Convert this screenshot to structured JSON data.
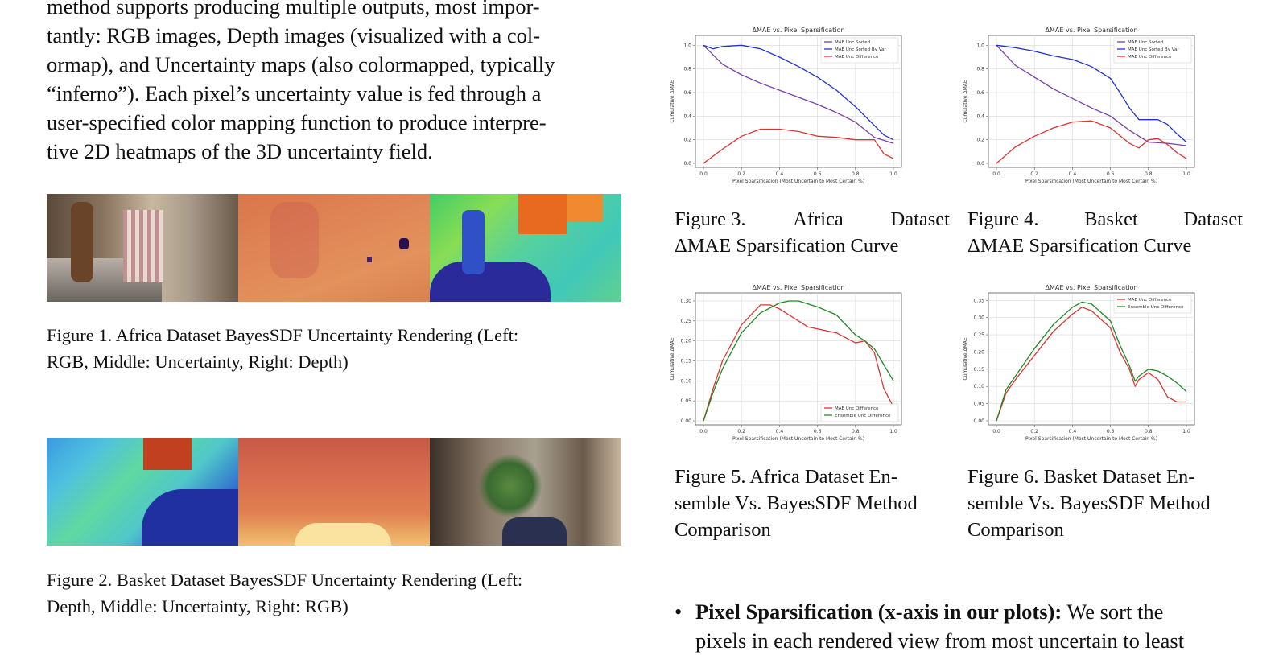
{
  "paragraph": {
    "lines": [
      "method supports producing multiple outputs, most impor-",
      "tantly: RGB images, Depth images (visualized with a col-",
      "ormap), and Uncertainty maps (also colormapped, typically",
      "“inferno”). Each pixel’s uncertainty value is fed through a",
      "user-specified color mapping function to produce interpre-",
      "tive 2D heatmaps of the 3D uncertainty field."
    ]
  },
  "figure1": {
    "caption_lines": [
      "Figure 1. Africa Dataset BayesSDF Uncertainty Rendering (Left:",
      "RGB, Middle: Uncertainty, Right: Depth)"
    ],
    "panels": [
      "RGB",
      "Uncertainty",
      "Depth"
    ]
  },
  "figure2": {
    "caption_lines": [
      "Figure 2. Basket Dataset BayesSDF Uncertainty Rendering (Left:",
      "Depth, Middle: Uncertainty, Right: RGB)"
    ],
    "panels": [
      "Depth",
      "Uncertainty",
      "RGB"
    ]
  },
  "captions": {
    "fig3": {
      "line1": [
        "Figure 3.",
        "Africa",
        "Dataset"
      ],
      "line2": "ΔMAE Sparsification Curve"
    },
    "fig4": {
      "line1": [
        "Figure 4.",
        "Basket",
        "Dataset"
      ],
      "line2": "ΔMAE Sparsification Curve"
    },
    "fig5": {
      "lines": [
        "Figure 5.  Africa Dataset En-",
        "semble Vs. BayesSDF Method",
        "Comparison"
      ]
    },
    "fig6": {
      "lines": [
        "Figure 6.  Basket Dataset En-",
        "semble Vs. BayesSDF Method",
        "Comparison"
      ]
    }
  },
  "bullet": {
    "bold": "Pixel Sparsification (x-axis in our plots):",
    "rest_line1": " We sort the",
    "line2": "pixels in each rendered view from most uncertain to least"
  },
  "chart_data": [
    {
      "id": "fig3",
      "type": "line",
      "title": "ΔMAE vs. Pixel Sparsification",
      "xlabel": "Pixel Sparsification (Most Uncertain to Most Certain %)",
      "ylabel": "Cumulative ΔMAE",
      "xlim": [
        0,
        1
      ],
      "ylim": [
        0,
        1.05
      ],
      "xticks": [
        0.0,
        0.2,
        0.4,
        0.6,
        0.8,
        1.0
      ],
      "yticks": [
        0.0,
        0.2,
        0.4,
        0.6,
        0.8,
        1.0
      ],
      "grid": true,
      "legend": "top-right",
      "series": [
        {
          "name": "MAE Unc Sorted",
          "color": "#7b3fa8",
          "x": [
            0,
            0.1,
            0.2,
            0.3,
            0.4,
            0.5,
            0.6,
            0.7,
            0.8,
            0.9,
            1.0
          ],
          "y": [
            1.0,
            0.84,
            0.75,
            0.68,
            0.62,
            0.56,
            0.5,
            0.43,
            0.35,
            0.22,
            0.17
          ]
        },
        {
          "name": "MAE Unc Sorted By Var",
          "color": "#2233cc",
          "x": [
            0,
            0.05,
            0.1,
            0.2,
            0.3,
            0.4,
            0.5,
            0.6,
            0.7,
            0.8,
            0.9,
            0.95,
            1.0
          ],
          "y": [
            1.0,
            0.97,
            0.99,
            1.0,
            0.97,
            0.9,
            0.82,
            0.73,
            0.62,
            0.48,
            0.32,
            0.24,
            0.2
          ]
        },
        {
          "name": "MAE Unc Difference",
          "color": "#dd3333",
          "x": [
            0,
            0.1,
            0.2,
            0.3,
            0.4,
            0.5,
            0.6,
            0.7,
            0.8,
            0.85,
            0.9,
            0.95,
            1.0
          ],
          "y": [
            0.0,
            0.12,
            0.23,
            0.29,
            0.29,
            0.27,
            0.23,
            0.22,
            0.2,
            0.2,
            0.2,
            0.08,
            0.04
          ]
        }
      ]
    },
    {
      "id": "fig4",
      "type": "line",
      "title": "ΔMAE vs. Pixel Sparsification",
      "xlabel": "Pixel Sparsification (Most Uncertain to Most Certain %)",
      "ylabel": "Cumulative ΔMAE",
      "xlim": [
        0,
        1
      ],
      "ylim": [
        0,
        1.05
      ],
      "xticks": [
        0.0,
        0.2,
        0.4,
        0.6,
        0.8,
        1.0
      ],
      "yticks": [
        0.0,
        0.2,
        0.4,
        0.6,
        0.8,
        1.0
      ],
      "grid": true,
      "legend": "top-right",
      "series": [
        {
          "name": "MAE Unc Sorted",
          "color": "#7b3fa8",
          "x": [
            0,
            0.1,
            0.2,
            0.3,
            0.4,
            0.5,
            0.6,
            0.7,
            0.8,
            0.9,
            1.0
          ],
          "y": [
            1.0,
            0.83,
            0.73,
            0.63,
            0.55,
            0.47,
            0.4,
            0.28,
            0.18,
            0.17,
            0.15
          ]
        },
        {
          "name": "MAE Unc Sorted By Var",
          "color": "#2233cc",
          "x": [
            0,
            0.1,
            0.2,
            0.3,
            0.4,
            0.5,
            0.6,
            0.65,
            0.7,
            0.75,
            0.8,
            0.85,
            0.9,
            0.95,
            1.0
          ],
          "y": [
            1.0,
            0.98,
            0.95,
            0.91,
            0.88,
            0.82,
            0.72,
            0.6,
            0.47,
            0.37,
            0.37,
            0.37,
            0.33,
            0.25,
            0.18
          ]
        },
        {
          "name": "MAE Unc Difference",
          "color": "#dd3333",
          "x": [
            0,
            0.1,
            0.2,
            0.3,
            0.4,
            0.5,
            0.6,
            0.7,
            0.75,
            0.8,
            0.85,
            0.9,
            0.95,
            1.0
          ],
          "y": [
            0.0,
            0.14,
            0.23,
            0.3,
            0.35,
            0.36,
            0.3,
            0.17,
            0.13,
            0.2,
            0.21,
            0.16,
            0.09,
            0.04
          ]
        }
      ]
    },
    {
      "id": "fig5",
      "type": "line",
      "title": "ΔMAE vs. Pixel Sparsification",
      "xlabel": "Pixel Sparsification (Most Uncertain to Most Certain %)",
      "ylabel": "Cumulative ΔMAE",
      "xlim": [
        0,
        1
      ],
      "ylim": [
        0,
        0.31
      ],
      "xticks": [
        0.0,
        0.2,
        0.4,
        0.6,
        0.8,
        1.0
      ],
      "yticks": [
        0.0,
        0.05,
        0.1,
        0.15,
        0.2,
        0.25,
        0.3
      ],
      "grid": true,
      "legend": "bottom-right",
      "series": [
        {
          "name": "MAE Unc Difference",
          "color": "#dd3333",
          "x": [
            0,
            0.05,
            0.1,
            0.2,
            0.3,
            0.35,
            0.4,
            0.5,
            0.55,
            0.6,
            0.7,
            0.8,
            0.85,
            0.9,
            0.95,
            1.0
          ],
          "y": [
            0.0,
            0.08,
            0.15,
            0.24,
            0.29,
            0.29,
            0.28,
            0.25,
            0.235,
            0.23,
            0.22,
            0.195,
            0.2,
            0.17,
            0.08,
            0.035
          ]
        },
        {
          "name": "Ensemble Unc Difference",
          "color": "#228822",
          "x": [
            0,
            0.05,
            0.1,
            0.2,
            0.3,
            0.4,
            0.45,
            0.5,
            0.6,
            0.7,
            0.8,
            0.85,
            0.9,
            0.95,
            1.0
          ],
          "y": [
            0.0,
            0.07,
            0.13,
            0.22,
            0.27,
            0.295,
            0.3,
            0.3,
            0.285,
            0.265,
            0.215,
            0.2,
            0.18,
            0.14,
            0.1
          ]
        }
      ]
    },
    {
      "id": "fig6",
      "type": "line",
      "title": "ΔMAE vs. Pixel Sparsification",
      "xlabel": "Pixel Sparsification (Most Uncertain to Most Certain %)",
      "ylabel": "Cumulative ΔMAE",
      "xlim": [
        0,
        1
      ],
      "ylim": [
        0,
        0.36
      ],
      "xticks": [
        0.0,
        0.2,
        0.4,
        0.6,
        0.8,
        1.0
      ],
      "yticks": [
        0.0,
        0.05,
        0.1,
        0.15,
        0.2,
        0.25,
        0.3,
        0.35
      ],
      "grid": true,
      "legend": "top-right",
      "series": [
        {
          "name": "MAE Unc Difference",
          "color": "#dd3333",
          "x": [
            0,
            0.05,
            0.1,
            0.2,
            0.3,
            0.4,
            0.45,
            0.5,
            0.6,
            0.65,
            0.7,
            0.73,
            0.75,
            0.8,
            0.85,
            0.9,
            0.95,
            1.0
          ],
          "y": [
            0.0,
            0.08,
            0.12,
            0.19,
            0.26,
            0.31,
            0.33,
            0.32,
            0.27,
            0.2,
            0.15,
            0.1,
            0.12,
            0.14,
            0.12,
            0.07,
            0.055,
            0.055
          ]
        },
        {
          "name": "Ensemble Unc Difference",
          "color": "#228822",
          "x": [
            0,
            0.05,
            0.1,
            0.2,
            0.3,
            0.4,
            0.45,
            0.5,
            0.6,
            0.65,
            0.7,
            0.73,
            0.75,
            0.8,
            0.85,
            0.9,
            0.95,
            1.0
          ],
          "y": [
            0.0,
            0.09,
            0.13,
            0.21,
            0.28,
            0.33,
            0.345,
            0.34,
            0.29,
            0.22,
            0.16,
            0.115,
            0.13,
            0.15,
            0.145,
            0.13,
            0.11,
            0.085
          ]
        }
      ]
    }
  ]
}
